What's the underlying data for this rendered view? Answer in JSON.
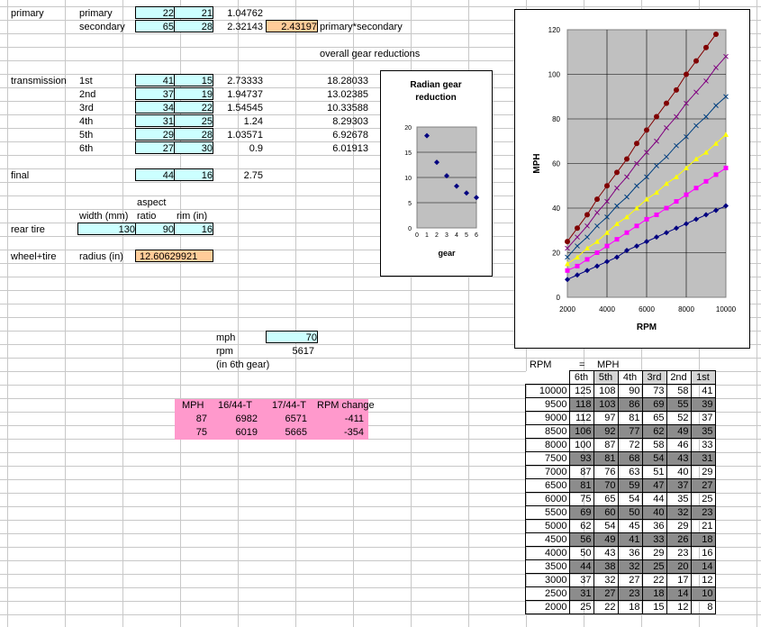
{
  "primary": {
    "label": "primary",
    "sub": "primary",
    "a": "22",
    "b": "21",
    "ratio": "1.04762"
  },
  "secondary": {
    "sub": "secondary",
    "a": "65",
    "b": "28",
    "ratio": "2.32143",
    "product": "2.43197",
    "product_label": "primary*secondary"
  },
  "overall_label": "overall gear reductions",
  "transmission": {
    "label": "transmission",
    "gears": [
      {
        "name": "1st",
        "a": "41",
        "b": "15",
        "ratio": "2.73333",
        "overall": "18.28033"
      },
      {
        "name": "2nd",
        "a": "37",
        "b": "19",
        "ratio": "1.94737",
        "overall": "13.02385"
      },
      {
        "name": "3rd",
        "a": "34",
        "b": "22",
        "ratio": "1.54545",
        "overall": "10.33588"
      },
      {
        "name": "4th",
        "a": "31",
        "b": "25",
        "ratio": "1.24",
        "overall": "8.29303"
      },
      {
        "name": "5th",
        "a": "29",
        "b": "28",
        "ratio": "1.03571",
        "overall": "6.92678"
      },
      {
        "name": "6th",
        "a": "27",
        "b": "30",
        "ratio": "0.9",
        "overall": "6.01913"
      }
    ]
  },
  "final": {
    "label": "final",
    "a": "44",
    "b": "16",
    "ratio": "2.75"
  },
  "tire": {
    "aspect_hdr": "aspect",
    "width_hdr": "width (mm)",
    "ratio_hdr": "ratio",
    "rim_hdr": "rim (in)",
    "label": "rear tire",
    "width": "130",
    "aspect": "90",
    "rim": "16"
  },
  "wheel": {
    "label": "wheel+tire",
    "radius_label": "radius (in)",
    "radius": "12.60629921"
  },
  "speed": {
    "mph_label": "mph",
    "mph": "70",
    "rpm_label": "rpm",
    "rpm": "5617",
    "note": "(in 6th gear)"
  },
  "pink": {
    "headers": [
      "MPH",
      "16/44-T",
      "17/44-T",
      "RPM change"
    ],
    "rows": [
      [
        "87",
        "6982",
        "6571",
        "-411"
      ],
      [
        "75",
        "6019",
        "5665",
        "-354"
      ]
    ]
  },
  "table": {
    "rpm_hdr": "RPM",
    "eq": "=",
    "mph_hdr": "MPH",
    "cols": [
      "6th",
      "5th",
      "4th",
      "3rd",
      "2nd",
      "1st"
    ],
    "rows": [
      [
        "10000",
        "125",
        "108",
        "90",
        "73",
        "58",
        "41"
      ],
      [
        "9500",
        "118",
        "103",
        "86",
        "69",
        "55",
        "39"
      ],
      [
        "9000",
        "112",
        "97",
        "81",
        "65",
        "52",
        "37"
      ],
      [
        "8500",
        "106",
        "92",
        "77",
        "62",
        "49",
        "35"
      ],
      [
        "8000",
        "100",
        "87",
        "72",
        "58",
        "46",
        "33"
      ],
      [
        "7500",
        "93",
        "81",
        "68",
        "54",
        "43",
        "31"
      ],
      [
        "7000",
        "87",
        "76",
        "63",
        "51",
        "40",
        "29"
      ],
      [
        "6500",
        "81",
        "70",
        "59",
        "47",
        "37",
        "27"
      ],
      [
        "6000",
        "75",
        "65",
        "54",
        "44",
        "35",
        "25"
      ],
      [
        "5500",
        "69",
        "60",
        "50",
        "40",
        "32",
        "23"
      ],
      [
        "5000",
        "62",
        "54",
        "45",
        "36",
        "29",
        "21"
      ],
      [
        "4500",
        "56",
        "49",
        "41",
        "33",
        "26",
        "18"
      ],
      [
        "4000",
        "50",
        "43",
        "36",
        "29",
        "23",
        "16"
      ],
      [
        "3500",
        "44",
        "38",
        "32",
        "25",
        "20",
        "14"
      ],
      [
        "3000",
        "37",
        "32",
        "27",
        "22",
        "17",
        "12"
      ],
      [
        "2500",
        "31",
        "27",
        "23",
        "18",
        "14",
        "10"
      ],
      [
        "2000",
        "25",
        "22",
        "18",
        "15",
        "12",
        "8"
      ]
    ]
  },
  "chart_data": [
    {
      "type": "scatter",
      "title": "Radian gear reduction",
      "xlabel": "gear",
      "ylabel": "",
      "xlim": [
        0,
        6
      ],
      "ylim": [
        0,
        20
      ],
      "xticks": [
        "0",
        "1",
        "2",
        "3",
        "4",
        "5",
        "6"
      ],
      "yticks": [
        "0",
        "5",
        "10",
        "15",
        "20"
      ],
      "x": [
        1,
        2,
        3,
        4,
        5,
        6
      ],
      "values": [
        18.28,
        13.02,
        10.34,
        8.29,
        6.93,
        6.02
      ],
      "color": "#000080"
    },
    {
      "type": "line",
      "title": "",
      "xlabel": "RPM",
      "ylabel": "MPH",
      "xlim": [
        2000,
        10000
      ],
      "ylim": [
        0,
        120
      ],
      "xticks": [
        "2000",
        "4000",
        "6000",
        "8000",
        "10000"
      ],
      "yticks": [
        "0",
        "20",
        "40",
        "60",
        "80",
        "100",
        "120"
      ],
      "x": [
        2000,
        2500,
        3000,
        3500,
        4000,
        4500,
        5000,
        5500,
        6000,
        6500,
        7000,
        7500,
        8000,
        8500,
        9000,
        9500,
        10000
      ],
      "series": [
        {
          "values": [
            8,
            10,
            12,
            14,
            16,
            18,
            21,
            23,
            25,
            27,
            29,
            31,
            33,
            35,
            37,
            39,
            41
          ],
          "color": "#000080",
          "marker": "diamond"
        },
        {
          "values": [
            12,
            14,
            17,
            20,
            23,
            26,
            29,
            32,
            35,
            37,
            40,
            43,
            46,
            49,
            52,
            55,
            58
          ],
          "color": "#ff00ff",
          "marker": "square"
        },
        {
          "values": [
            15,
            18,
            22,
            25,
            29,
            33,
            36,
            40,
            44,
            47,
            51,
            54,
            58,
            62,
            65,
            69,
            73
          ],
          "color": "#ffff00",
          "marker": "triangle"
        },
        {
          "values": [
            18,
            23,
            27,
            32,
            36,
            41,
            45,
            50,
            54,
            59,
            63,
            68,
            72,
            77,
            81,
            86,
            90
          ],
          "color": "#004080",
          "marker": "x"
        },
        {
          "values": [
            22,
            27,
            32,
            38,
            43,
            49,
            54,
            60,
            65,
            70,
            76,
            81,
            87,
            92,
            97,
            103,
            108
          ],
          "color": "#800080",
          "marker": "x"
        },
        {
          "values": [
            25,
            31,
            37,
            44,
            50,
            56,
            62,
            69,
            75,
            81,
            87,
            93,
            100,
            106,
            112,
            118,
            125
          ],
          "color": "#800000",
          "marker": "circle",
          "clip": 120
        }
      ]
    }
  ]
}
